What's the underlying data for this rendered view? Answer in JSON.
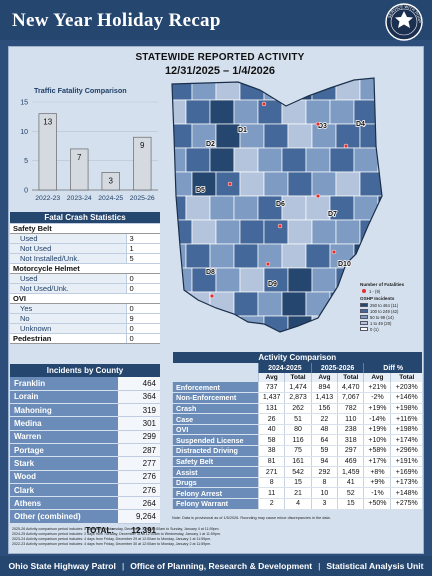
{
  "header": {
    "title": "New Year Holiday Recap",
    "seal_text": "SERVICE WITH PURPOSE"
  },
  "statewide": {
    "title": "STATEWIDE REPORTED ACTIVITY",
    "dates": "12/31/2025 – 1/4/2026"
  },
  "chart_data": {
    "type": "bar",
    "title": "Traffic Fatality Comparison",
    "categories": [
      "2022-23",
      "2023-24",
      "2024-25",
      "2025-26"
    ],
    "values": [
      13,
      7,
      3,
      9
    ],
    "ylim": [
      0,
      15
    ],
    "yticks": [
      0,
      5,
      10,
      15
    ],
    "bar_color": "#d5d9e0"
  },
  "map": {
    "districts": [
      "D1",
      "D2",
      "D3",
      "D4",
      "D5",
      "D6",
      "D7",
      "D8",
      "D9",
      "D10"
    ],
    "legend": {
      "title1": "Number of Fatalities",
      "fatal_range": "1 - (9)",
      "title2": "OSHP Incidents",
      "ranges": [
        {
          "label": "250 to 464  (11)",
          "color": "#25466f"
        },
        {
          "label": "100 to 249  (42)",
          "color": "#45689a"
        },
        {
          "label": "50 to 99  (14)",
          "color": "#7e9bc3"
        },
        {
          "label": "1 to 49  (20)",
          "color": "#b3c4dc"
        },
        {
          "label": "0  (1)",
          "color": "#ffffff"
        }
      ]
    }
  },
  "fatal_crash": {
    "title": "Fatal Crash Statistics",
    "sections": [
      {
        "label": "Safety Belt",
        "items": [
          {
            "label": "Used",
            "value": "3"
          },
          {
            "label": "Not Used",
            "value": "1"
          },
          {
            "label": "Not Installed/Unk.",
            "value": "5"
          }
        ]
      },
      {
        "label": "Motorcycle Helmet",
        "items": [
          {
            "label": "Used",
            "value": "0"
          },
          {
            "label": "Not Used/Unk.",
            "value": "0"
          }
        ]
      },
      {
        "label": "OVI",
        "items": [
          {
            "label": "Yes",
            "value": "0"
          },
          {
            "label": "No",
            "value": "9"
          },
          {
            "label": "Unknown",
            "value": "0"
          }
        ]
      },
      {
        "label": "Pedestrian",
        "value": "0",
        "items": []
      }
    ]
  },
  "county": {
    "title": "Incidents by County",
    "rows": [
      {
        "name": "Franklin",
        "value": "464"
      },
      {
        "name": "Lorain",
        "value": "364"
      },
      {
        "name": "Mahoning",
        "value": "319"
      },
      {
        "name": "Medina",
        "value": "301"
      },
      {
        "name": "Warren",
        "value": "299"
      },
      {
        "name": "Portage",
        "value": "287"
      },
      {
        "name": "Stark",
        "value": "277"
      },
      {
        "name": "Wood",
        "value": "276"
      },
      {
        "name": "Clark",
        "value": "276"
      },
      {
        "name": "Athens",
        "value": "264"
      },
      {
        "name": "Other (combined)",
        "value": "9,264"
      }
    ],
    "total_label": "TOTAL:",
    "total_value": "12,391"
  },
  "activity": {
    "title": "Activity Comparison",
    "groups": [
      "2024-2025",
      "2025-2026",
      "Diff %"
    ],
    "subheads": [
      "Avg",
      "Total",
      "Avg",
      "Total",
      "Avg",
      "Total"
    ],
    "rows": [
      {
        "label": "Enforcement",
        "vals": [
          "737",
          "1,474",
          "894",
          "4,470",
          "+21%",
          "+203%"
        ]
      },
      {
        "label": "Non-Enforcement",
        "vals": [
          "1,437",
          "2,873",
          "1,413",
          "7,067",
          "-2%",
          "+146%"
        ]
      },
      {
        "label": "Crash",
        "vals": [
          "131",
          "262",
          "156",
          "782",
          "+19%",
          "+198%"
        ]
      },
      {
        "label": "Case",
        "vals": [
          "26",
          "51",
          "22",
          "110",
          "-14%",
          "+116%"
        ]
      },
      {
        "label": "OVI",
        "vals": [
          "40",
          "80",
          "48",
          "238",
          "+19%",
          "+198%"
        ]
      },
      {
        "label": "Suspended License",
        "vals": [
          "58",
          "116",
          "64",
          "318",
          "+10%",
          "+174%"
        ]
      },
      {
        "label": "Distracted Driving",
        "vals": [
          "38",
          "75",
          "59",
          "297",
          "+58%",
          "+296%"
        ]
      },
      {
        "label": "Safety Belt",
        "vals": [
          "81",
          "161",
          "94",
          "469",
          "+17%",
          "+191%"
        ]
      },
      {
        "label": "Assist",
        "vals": [
          "271",
          "542",
          "292",
          "1,459",
          "+8%",
          "+169%"
        ]
      },
      {
        "label": "Drugs",
        "vals": [
          "8",
          "15",
          "8",
          "41",
          "+9%",
          "+173%"
        ]
      },
      {
        "label": "Felony Arrest",
        "vals": [
          "11",
          "21",
          "10",
          "52",
          "-1%",
          "+148%"
        ]
      },
      {
        "label": "Felony Warrant",
        "vals": [
          "2",
          "4",
          "3",
          "15",
          "+50%",
          "+275%"
        ]
      }
    ],
    "note": "Note: Data is provisional as of 1/5/2026. Rounding may cause minor discrepancies in the data."
  },
  "periods": [
    "2025-26 Activity comparison period includes: 5 days from Wednesday, December 31 at 12:00am to Sunday, January 4 at 11:59pm.",
    "2024-25 Activity comparison period includes: 2 days from Tuesday, December 31 at 12:00am to Wednesday, January 1 at 11:59pm.",
    "2023-24 Activity comparison period includes: 4 days from Friday, December 29 at 12:00am to Monday, January 1 at 11:59pm.",
    "2022-23 Activity comparison period includes: 4 days from Friday, December 30 at 12:00am to Monday, January 2 at 11:59pm."
  ],
  "footer": {
    "org": "Ohio State Highway Patrol",
    "office": "Office of Planning, Research & Development",
    "unit": "Statistical Analysis Unit"
  }
}
